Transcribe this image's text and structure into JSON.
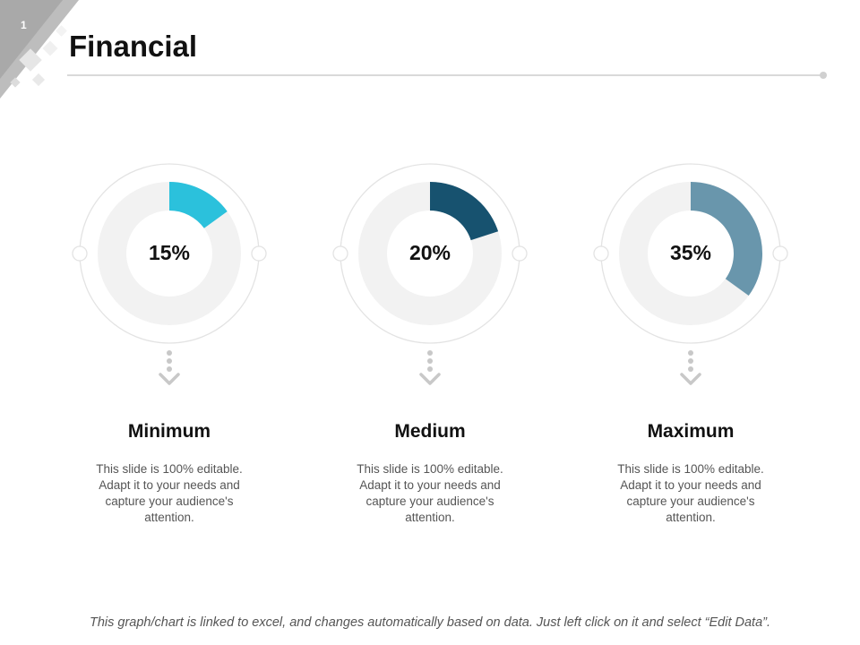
{
  "slide": {
    "number": "1",
    "title": "Financial",
    "footer": "This graph/chart is linked to excel, and changes automatically based on data. Just left click on it and select “Edit Data”."
  },
  "chart_data": [
    {
      "type": "pie",
      "variant": "donut",
      "label": "Minimum",
      "value": 15,
      "value_label": "15%",
      "description": "This slide is 100% editable. Adapt it to your needs and capture your audience's attention.",
      "color": "#2BC1DC"
    },
    {
      "type": "pie",
      "variant": "donut",
      "label": "Medium",
      "value": 20,
      "value_label": "20%",
      "description": "This slide is 100% editable. Adapt it to your needs and capture your audience's attention.",
      "color": "#17526F"
    },
    {
      "type": "pie",
      "variant": "donut",
      "label": "Maximum",
      "value": 35,
      "value_label": "35%",
      "description": "This slide is 100% editable. Adapt it to your needs and capture your audience's attention.",
      "color": "#6996AC"
    }
  ],
  "colors": {
    "track": "#F2F2F2",
    "outline": "#E3E3E3",
    "arrow": "#C8C8C8",
    "corner": "#BFBFBF"
  }
}
